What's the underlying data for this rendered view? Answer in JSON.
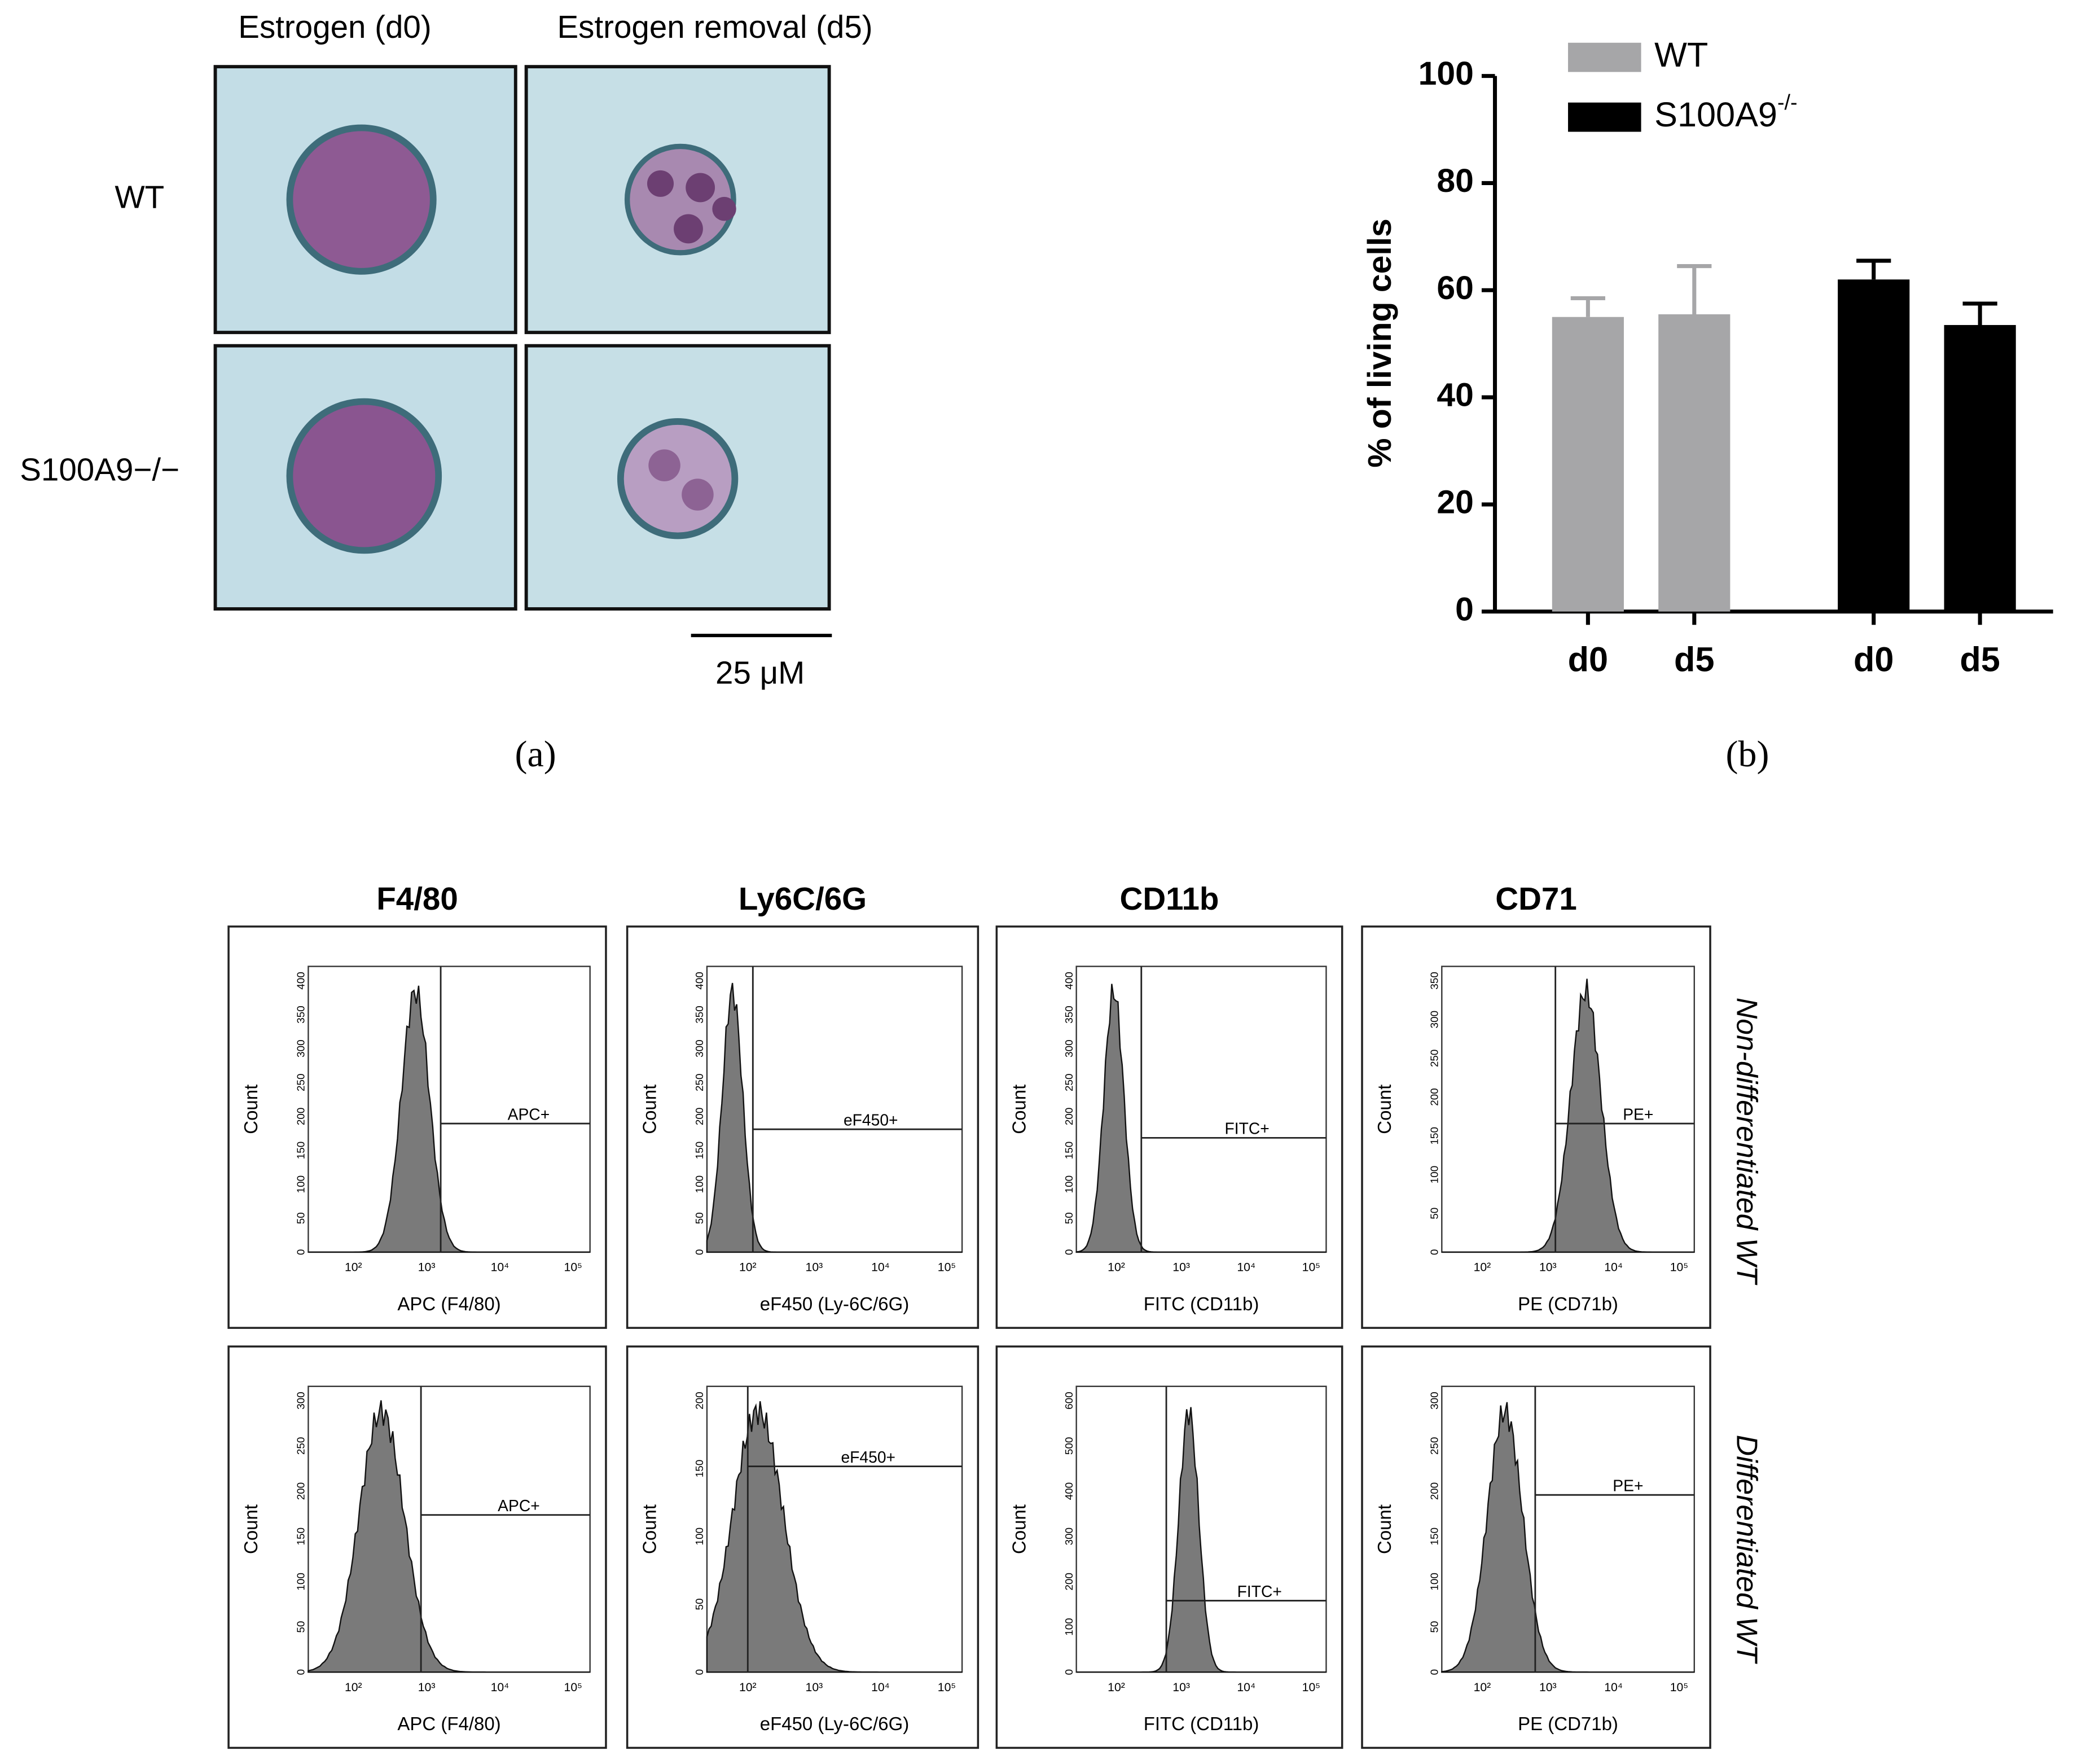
{
  "panel_a": {
    "columns": [
      "Estrogen (d0)",
      "Estrogen removal (d5)"
    ],
    "rows": [
      "WT",
      "S100A9−/−"
    ],
    "scale_bar": "25 μM",
    "label": "(a)"
  },
  "chart_data": {
    "type": "bar",
    "label": "(b)",
    "ylabel": "% of living cells",
    "categories": [
      "d0",
      "d5",
      "d0",
      "d5"
    ],
    "series": [
      {
        "name": "WT",
        "color": "#a6a6a8",
        "values": [
          55,
          55.5,
          null,
          null
        ],
        "errors": [
          3.5,
          9,
          null,
          null
        ]
      },
      {
        "name": "S100A9-/-",
        "color": "#000000",
        "values": [
          null,
          null,
          62,
          53.5
        ],
        "errors": [
          null,
          null,
          3.5,
          4
        ]
      }
    ],
    "ylim": [
      0,
      100
    ],
    "yticks": [
      0,
      20,
      40,
      60,
      80,
      100
    ],
    "legend": "top-left"
  },
  "flow": {
    "markers": [
      "F4/80",
      "Ly6C/6G",
      "CD11b",
      "CD71"
    ],
    "conditions": [
      "Non-differentiated WT",
      "Differentiated WT"
    ],
    "xticks": [
      "10²",
      "10³",
      "10⁴",
      "10⁵"
    ],
    "plots": [
      [
        {
          "xlabel": "APC (F4/80)",
          "ylabel": "Count",
          "gate": "APC+",
          "yticks": [
            "0",
            "50",
            "100",
            "150",
            "200",
            "250",
            "300",
            "350",
            "400"
          ]
        },
        {
          "xlabel": "eF450 (Ly-6C/6G)",
          "ylabel": "Count",
          "gate": "eF450+",
          "yticks": [
            "0",
            "50",
            "100",
            "150",
            "200",
            "250",
            "300",
            "350",
            "400"
          ]
        },
        {
          "xlabel": "FITC (CD11b)",
          "ylabel": "Count",
          "gate": "FITC+",
          "yticks": [
            "0",
            "50",
            "100",
            "150",
            "200",
            "250",
            "300",
            "350",
            "400"
          ]
        },
        {
          "xlabel": "PE (CD71b)",
          "ylabel": "Count",
          "gate": "PE+",
          "yticks": [
            "0",
            "50",
            "100",
            "150",
            "200",
            "250",
            "300",
            "350"
          ]
        }
      ],
      [
        {
          "xlabel": "APC (F4/80)",
          "ylabel": "Count",
          "gate": "APC+",
          "yticks": [
            "0",
            "50",
            "100",
            "150",
            "200",
            "250",
            "300"
          ]
        },
        {
          "xlabel": "eF450 (Ly-6C/6G)",
          "ylabel": "Count",
          "gate": "eF450+",
          "yticks": [
            "0",
            "50",
            "100",
            "150",
            "200"
          ]
        },
        {
          "xlabel": "FITC (CD11b)",
          "ylabel": "Count",
          "gate": "FITC+",
          "yticks": [
            "0",
            "100",
            "200",
            "300",
            "400",
            "500",
            "600"
          ]
        },
        {
          "xlabel": "PE (CD71b)",
          "ylabel": "Count",
          "gate": "PE+",
          "yticks": [
            "0",
            "50",
            "100",
            "150",
            "200",
            "250",
            "300"
          ]
        }
      ]
    ]
  }
}
